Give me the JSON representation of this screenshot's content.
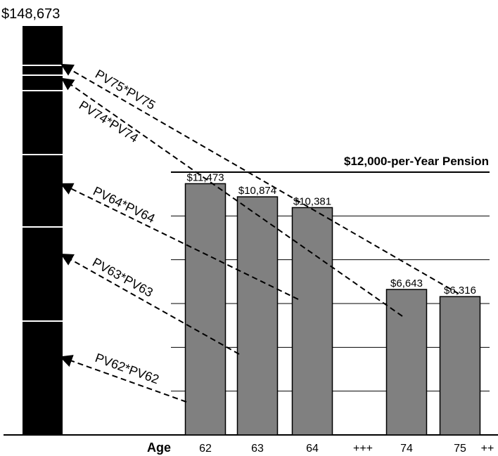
{
  "chart_data": {
    "type": "bar",
    "title": "$12,000-per-Year Pension",
    "xlabel": "Age",
    "categories": [
      "62",
      "63",
      "64",
      "+++",
      "74",
      "75"
    ],
    "trailing_tick": "++",
    "values": [
      11473,
      10874,
      10381,
      null,
      6643,
      6316
    ],
    "value_labels": [
      "$11,473",
      "$10,874",
      "$10,381",
      "",
      "$6,643",
      "$6,316"
    ],
    "ylim": [
      0,
      12000
    ],
    "grid": true,
    "bar_color": "#808080",
    "stack": {
      "total_label": "$148,673",
      "color": "#000000",
      "plus_marks": [
        "+",
        "+",
        "+",
        "+",
        "+"
      ]
    },
    "arrows": [
      {
        "label": "PV75*PV75",
        "from_category": "75"
      },
      {
        "label": "PV74*PV74",
        "from_category": "74"
      },
      {
        "label": "PV64*PV64",
        "from_category": "64"
      },
      {
        "label": "PV63*PV63",
        "from_category": "63"
      },
      {
        "label": "PV62*PV62",
        "from_category": "62"
      }
    ]
  }
}
